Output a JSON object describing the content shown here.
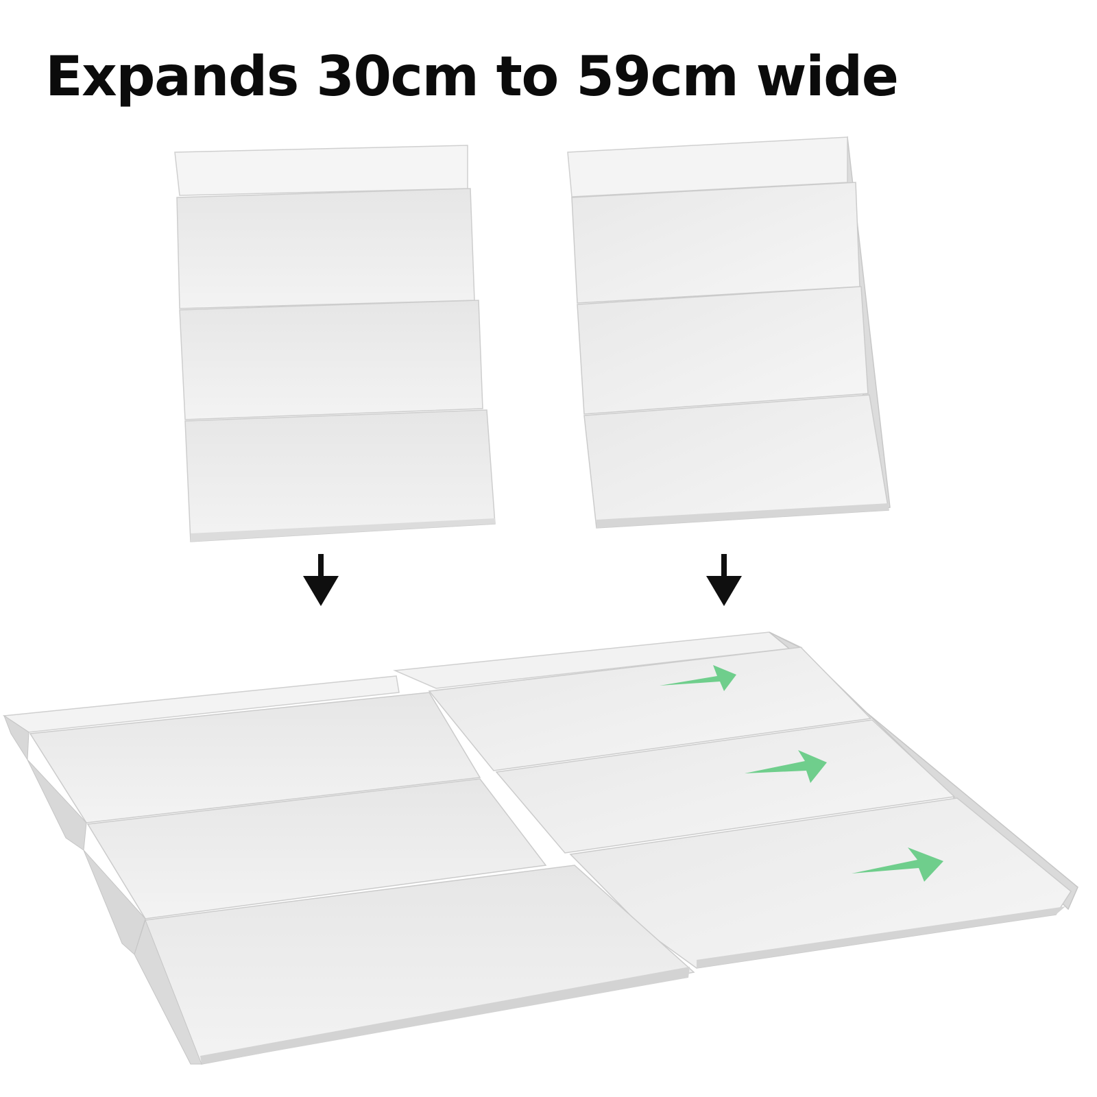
{
  "headline": "Expands 30cm to 59cm wide",
  "colors": {
    "background": "#ffffff",
    "headline_text": "#0b0b0b",
    "tray_face": "#efefef",
    "tray_lip": "#f8f8f8",
    "tray_side": "#d9d9d9",
    "tray_edge": "#c4c4c4",
    "down_arrow": "#0f0f0f",
    "expand_arrow": "#6fce8c"
  },
  "icons": {
    "down_arrow": "arrow-down-icon",
    "expand_arrow": "arrow-right-icon"
  }
}
